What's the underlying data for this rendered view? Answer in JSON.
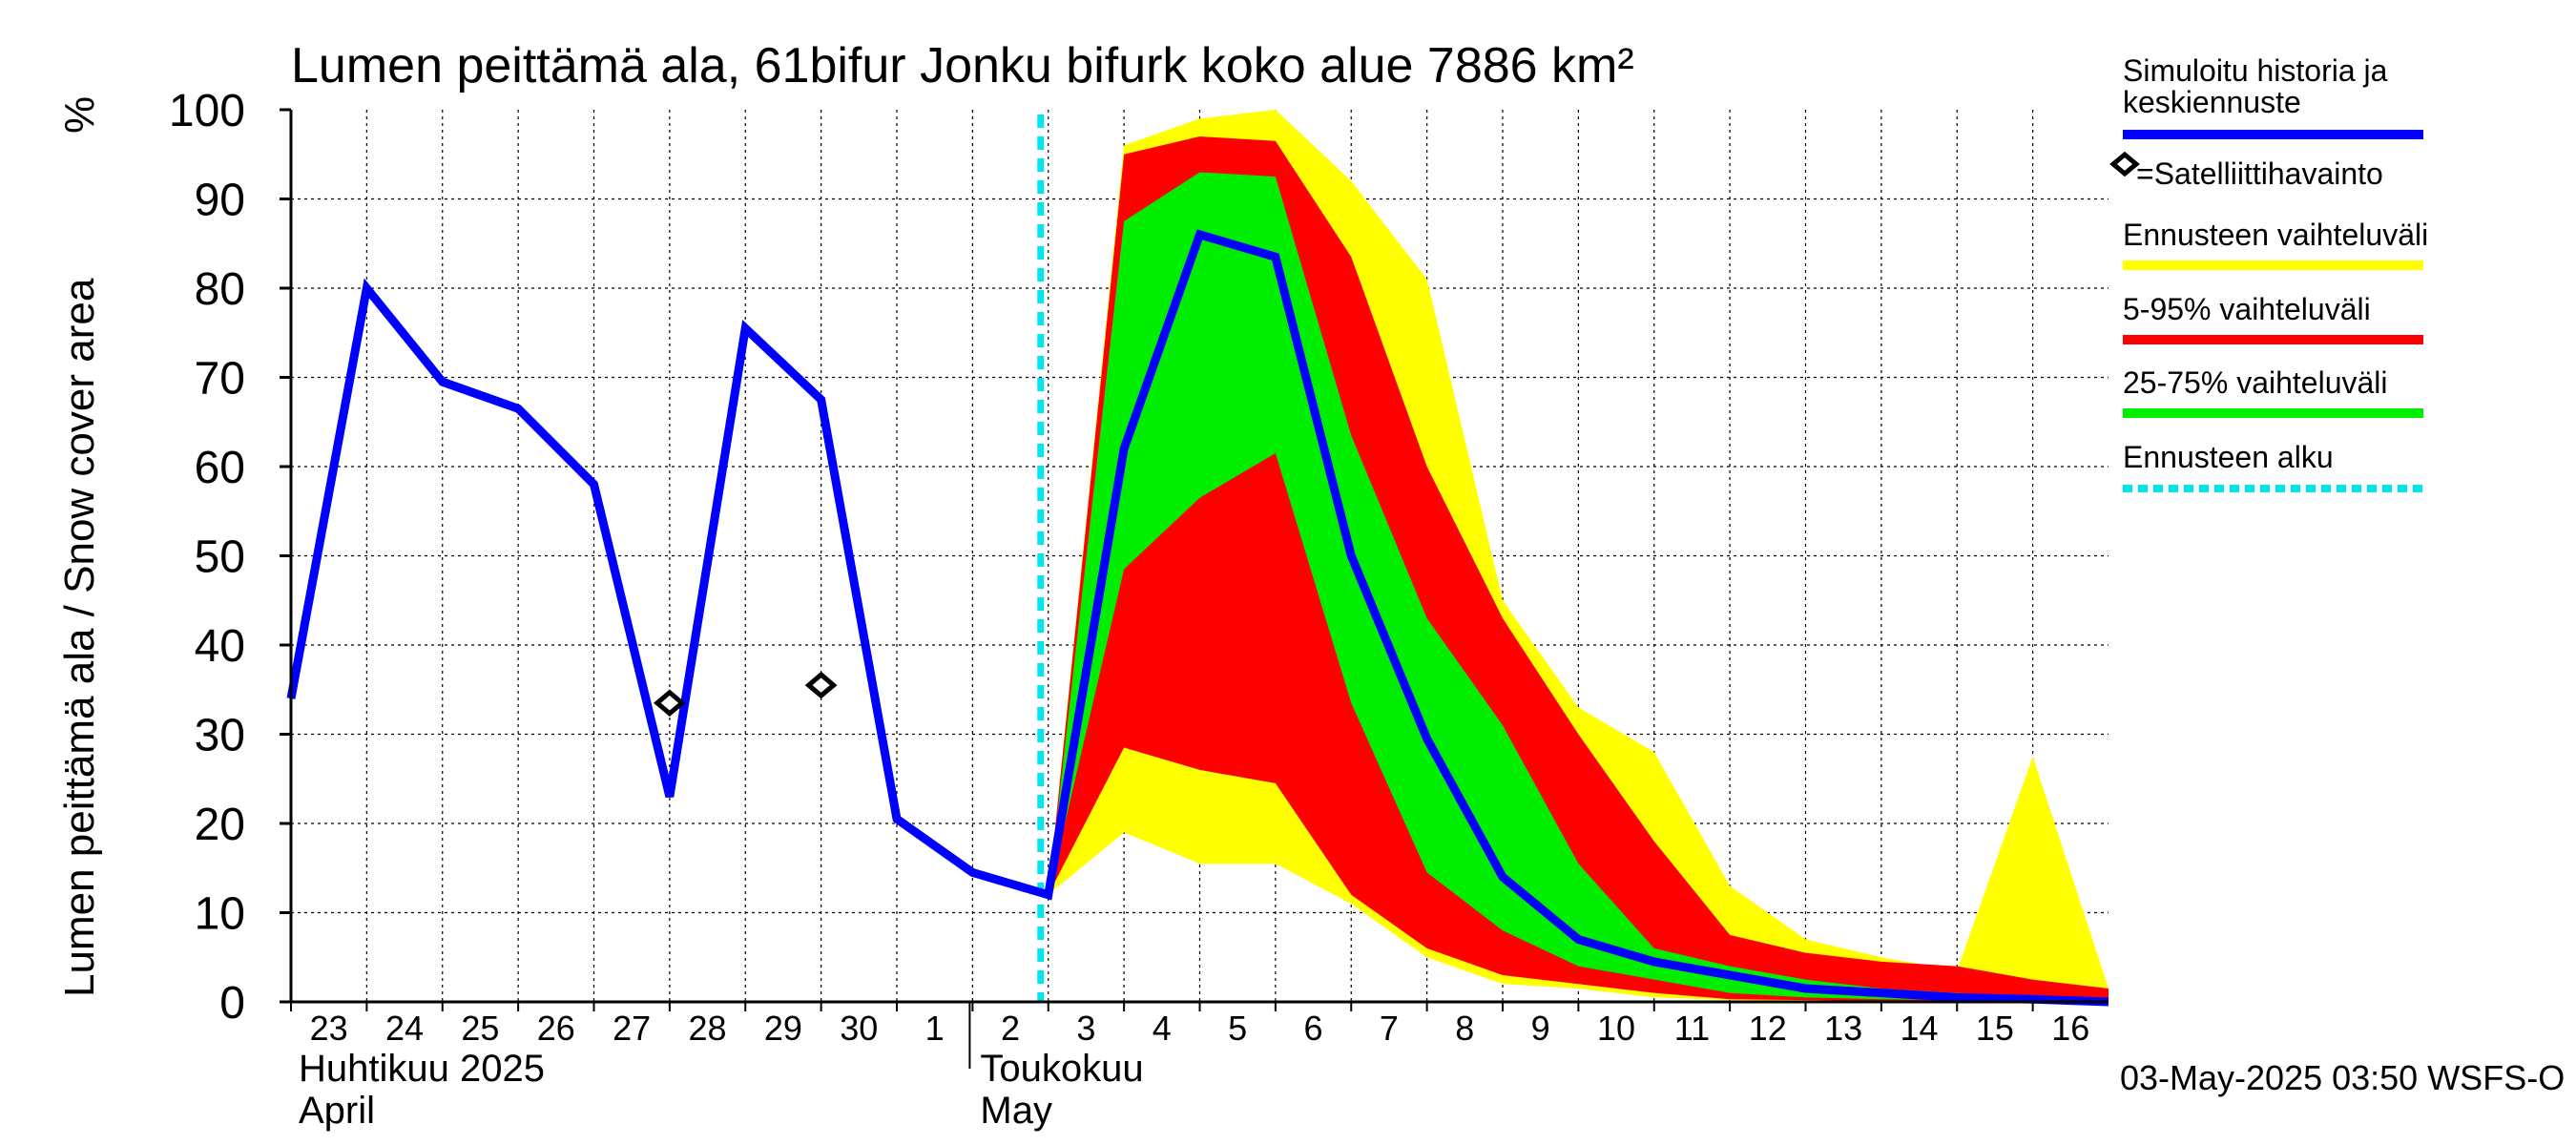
{
  "chart_data": {
    "type": "area",
    "title": "Lumen peittämä ala, 61bifur Jonku bifurk koko alue 7886 km²",
    "ylabel": "Lumen peittämä ala / Snow cover area",
    "yunit": "%",
    "ylim": [
      0,
      100
    ],
    "yticks": [
      0,
      10,
      20,
      30,
      40,
      50,
      60,
      70,
      80,
      90,
      100
    ],
    "grid": true,
    "legend_position": "right",
    "x_day_labels": [
      "23",
      "24",
      "25",
      "26",
      "27",
      "28",
      "29",
      "30",
      "1",
      "2",
      "3",
      "4",
      "5",
      "6",
      "7",
      "8",
      "9",
      "10",
      "11",
      "12",
      "13",
      "14",
      "15",
      "16"
    ],
    "month_labels": [
      {
        "fi": "Huhtikuu  2025",
        "en": "April",
        "start_day": 0
      },
      {
        "fi": "Toukokuu",
        "en": "May",
        "start_day": 9
      }
    ],
    "forecast_start_day": 10,
    "series": [
      {
        "name": "Simuloitu historia ja keskiennuste",
        "color": "#0000ff",
        "x": [
          0,
          1,
          2,
          3,
          4,
          5,
          6,
          7,
          8,
          9,
          10,
          11,
          12,
          13,
          14,
          15,
          16,
          17,
          18,
          19,
          20,
          21,
          22,
          23,
          24
        ],
        "values": [
          34,
          80,
          69.5,
          66.5,
          58,
          23,
          75.5,
          67.5,
          20.5,
          14.5,
          12,
          62,
          86,
          83.5,
          50,
          29.5,
          14,
          7,
          4.5,
          3,
          1.5,
          1,
          0.5,
          0.3,
          0
        ]
      },
      {
        "name": "=Satelliittihavainto",
        "type": "scatter",
        "x": [
          5,
          7
        ],
        "values": [
          33.5,
          35.5
        ]
      }
    ],
    "bands": [
      {
        "name": "Ennusteen vaihteluväli",
        "color": "#ffff00",
        "x": [
          10,
          11,
          12,
          13,
          14,
          15,
          16,
          17,
          18,
          19,
          20,
          21,
          22,
          23,
          24
        ],
        "lower": [
          12,
          19,
          15.5,
          15.5,
          11,
          5,
          2,
          1.5,
          0.5,
          0.2,
          0.1,
          0,
          0,
          0,
          0
        ],
        "upper": [
          12,
          96,
          99,
          100,
          92,
          81,
          45,
          33,
          28,
          13,
          7,
          5,
          3.5,
          27.5,
          1.5
        ]
      },
      {
        "name": "5-95% vaihteluväli",
        "color": "#ff0000",
        "x": [
          10,
          11,
          12,
          13,
          14,
          15,
          16,
          17,
          18,
          19,
          20,
          21,
          22,
          23,
          24
        ],
        "lower": [
          12,
          28.5,
          26,
          24.5,
          12,
          6,
          3,
          2,
          1,
          0.3,
          0.2,
          0.1,
          0,
          0,
          0
        ],
        "upper": [
          12,
          95,
          97,
          96.5,
          83.5,
          60,
          43,
          30,
          18,
          7.5,
          5.5,
          4.5,
          4,
          2.5,
          1.5
        ]
      },
      {
        "name": "25-75% vaihteluväli",
        "color": "#00ee00",
        "x": [
          10,
          11,
          12,
          13,
          14,
          15,
          16,
          17,
          18,
          19,
          20,
          21,
          22,
          23,
          24
        ],
        "lower": [
          12,
          48.5,
          56.5,
          61.5,
          33.5,
          14.5,
          8,
          4,
          2.5,
          1,
          0.5,
          0.3,
          0.2,
          0.1,
          0
        ],
        "upper": [
          12,
          87.5,
          93,
          92.5,
          63.5,
          43,
          31,
          15.5,
          6,
          4,
          2.5,
          1.5,
          1,
          0.5,
          0.3
        ]
      }
    ],
    "legend": [
      {
        "label": "Simuloitu historia ja",
        "label2": "keskiennuste",
        "color": "#0000ff",
        "style": "line"
      },
      {
        "label": "=Satelliittihavainto",
        "style": "diamond"
      },
      {
        "label": "Ennusteen vaihteluväli",
        "color": "#ffff00",
        "style": "line"
      },
      {
        "label": "5-95% vaihteluväli",
        "color": "#ff0000",
        "style": "line"
      },
      {
        "label": "25-75% vaihteluväli",
        "color": "#00ee00",
        "style": "line"
      },
      {
        "label": "Ennusteen alku",
        "color": "#00e5ee",
        "style": "dashed"
      }
    ],
    "footer": "03-May-2025 03:50 WSFS-O"
  }
}
